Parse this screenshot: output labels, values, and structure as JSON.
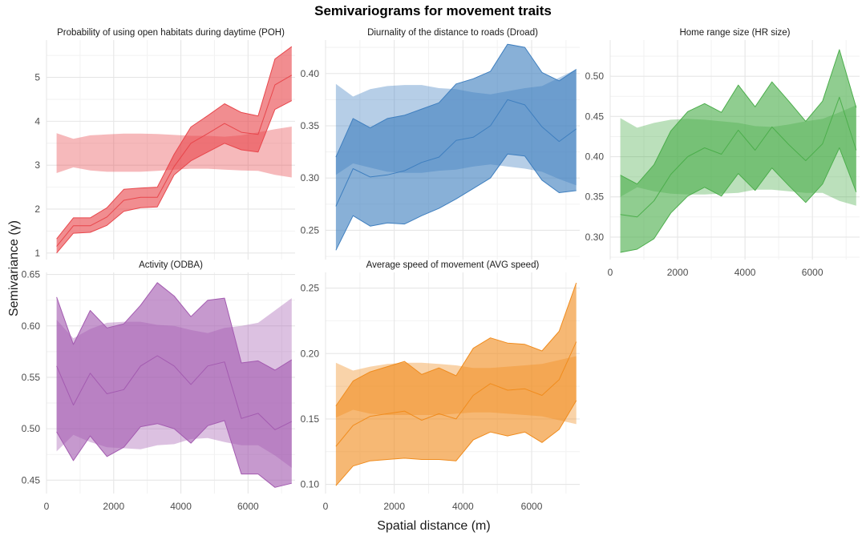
{
  "chart_data": {
    "type": "area",
    "title": "Semivariograms for movement traits",
    "xlabel": "Spatial distance (m)",
    "ylabel": "Semivariance (γ)",
    "x": [
      300,
      800,
      1300,
      1800,
      2300,
      2800,
      3300,
      3800,
      4300,
      4800,
      5300,
      5800,
      6300,
      6800,
      7300
    ],
    "x_ticks": [
      0,
      2000,
      4000,
      6000
    ],
    "xlim": [
      0,
      7400
    ],
    "grid": true,
    "panels": [
      {
        "title": "Probability of using open habitats during daytime (POH)",
        "color": "#e8474c",
        "ylim": [
          0.85,
          5.85
        ],
        "y_ticks": [
          1,
          2,
          3,
          4,
          5
        ],
        "y_tick_labels": [
          "1",
          "2",
          "3",
          "4",
          "5"
        ],
        "show_x_ticks": false,
        "observed": [
          1.15,
          1.62,
          1.62,
          1.82,
          2.2,
          2.27,
          2.27,
          2.97,
          3.5,
          3.72,
          3.95,
          3.75,
          3.7,
          4.83,
          5.05
        ],
        "observed_lower": [
          1.0,
          1.45,
          1.47,
          1.63,
          1.95,
          2.03,
          2.05,
          2.78,
          3.1,
          3.3,
          3.5,
          3.35,
          3.3,
          4.27,
          4.47
        ],
        "observed_upper": [
          1.32,
          1.8,
          1.8,
          2.03,
          2.45,
          2.48,
          2.5,
          3.25,
          3.87,
          4.13,
          4.4,
          4.2,
          4.12,
          5.42,
          5.7
        ],
        "envelope_lower": [
          2.82,
          2.95,
          2.88,
          2.85,
          2.85,
          2.85,
          2.87,
          2.9,
          2.92,
          2.92,
          2.9,
          2.88,
          2.87,
          2.78,
          2.72
        ],
        "envelope_upper": [
          3.73,
          3.6,
          3.68,
          3.7,
          3.72,
          3.72,
          3.71,
          3.69,
          3.67,
          3.67,
          3.65,
          3.68,
          3.75,
          3.82,
          3.88
        ]
      },
      {
        "title": "Diurnality of the distance to roads (Droad)",
        "color": "#3f7fbf",
        "ylim": [
          0.222,
          0.432
        ],
        "y_ticks": [
          0.25,
          0.3,
          0.35,
          0.4
        ],
        "y_tick_labels": [
          "0.25",
          "0.30",
          "0.35",
          "0.40"
        ],
        "show_x_ticks": false,
        "observed": [
          0.273,
          0.309,
          0.301,
          0.303,
          0.307,
          0.315,
          0.32,
          0.336,
          0.339,
          0.35,
          0.375,
          0.37,
          0.349,
          0.335,
          0.347
        ],
        "observed_lower": [
          0.231,
          0.264,
          0.254,
          0.257,
          0.256,
          0.264,
          0.271,
          0.28,
          0.29,
          0.3,
          0.323,
          0.321,
          0.298,
          0.286,
          0.288
        ],
        "observed_upper": [
          0.32,
          0.357,
          0.348,
          0.357,
          0.36,
          0.366,
          0.372,
          0.39,
          0.395,
          0.402,
          0.428,
          0.425,
          0.401,
          0.393,
          0.404
        ],
        "envelope_lower": [
          0.303,
          0.314,
          0.31,
          0.306,
          0.305,
          0.305,
          0.307,
          0.308,
          0.311,
          0.313,
          0.311,
          0.309,
          0.306,
          0.299,
          0.293
        ],
        "envelope_upper": [
          0.39,
          0.378,
          0.385,
          0.388,
          0.389,
          0.389,
          0.386,
          0.385,
          0.382,
          0.38,
          0.383,
          0.386,
          0.388,
          0.396,
          0.404
        ]
      },
      {
        "title": "Home range size (HR size)",
        "color": "#4cae4c",
        "ylim": [
          0.272,
          0.545
        ],
        "y_ticks": [
          0.3,
          0.35,
          0.4,
          0.45,
          0.5
        ],
        "y_tick_labels": [
          "0.30",
          "0.35",
          "0.40",
          "0.45",
          "0.50"
        ],
        "show_x_ticks": true,
        "observed": [
          0.328,
          0.325,
          0.345,
          0.378,
          0.4,
          0.411,
          0.403,
          0.433,
          0.408,
          0.437,
          0.415,
          0.395,
          0.416,
          0.474,
          0.408
        ],
        "observed_lower": [
          0.281,
          0.285,
          0.298,
          0.33,
          0.351,
          0.362,
          0.351,
          0.379,
          0.358,
          0.386,
          0.364,
          0.343,
          0.366,
          0.411,
          0.356
        ],
        "observed_upper": [
          0.377,
          0.366,
          0.39,
          0.432,
          0.456,
          0.466,
          0.455,
          0.489,
          0.462,
          0.493,
          0.469,
          0.444,
          0.469,
          0.533,
          0.461
        ],
        "envelope_lower": [
          0.35,
          0.362,
          0.357,
          0.354,
          0.353,
          0.353,
          0.354,
          0.355,
          0.359,
          0.359,
          0.357,
          0.355,
          0.355,
          0.345,
          0.339
        ],
        "envelope_upper": [
          0.448,
          0.436,
          0.442,
          0.446,
          0.447,
          0.446,
          0.444,
          0.442,
          0.438,
          0.437,
          0.44,
          0.444,
          0.447,
          0.455,
          0.464
        ]
      },
      {
        "title": "Activity (ODBA)",
        "color": "#a35bb0",
        "ylim": [
          0.437,
          0.652
        ],
        "y_ticks": [
          0.45,
          0.5,
          0.55,
          0.6,
          0.65
        ],
        "y_tick_labels": [
          "0.45",
          "0.50",
          "0.55",
          "0.60",
          "0.65"
        ],
        "show_x_ticks": true,
        "observed": [
          0.561,
          0.523,
          0.554,
          0.534,
          0.538,
          0.561,
          0.571,
          0.561,
          0.543,
          0.561,
          0.565,
          0.51,
          0.515,
          0.499,
          0.507
        ],
        "observed_lower": [
          0.497,
          0.469,
          0.493,
          0.473,
          0.482,
          0.502,
          0.505,
          0.5,
          0.486,
          0.503,
          0.508,
          0.456,
          0.456,
          0.443,
          0.447
        ],
        "observed_upper": [
          0.628,
          0.582,
          0.615,
          0.598,
          0.602,
          0.62,
          0.642,
          0.629,
          0.609,
          0.625,
          0.627,
          0.564,
          0.566,
          0.557,
          0.567
        ],
        "envelope_lower": [
          0.478,
          0.494,
          0.487,
          0.482,
          0.481,
          0.48,
          0.484,
          0.485,
          0.49,
          0.491,
          0.487,
          0.484,
          0.484,
          0.474,
          0.462
        ],
        "envelope_upper": [
          0.606,
          0.588,
          0.597,
          0.603,
          0.604,
          0.604,
          0.601,
          0.6,
          0.596,
          0.593,
          0.598,
          0.6,
          0.603,
          0.615,
          0.627
        ]
      },
      {
        "title": "Average speed of movement (AVG speed)",
        "color": "#f08c1e",
        "ylim": [
          0.093,
          0.262
        ],
        "y_ticks": [
          0.1,
          0.15,
          0.2,
          0.25
        ],
        "y_tick_labels": [
          "0.10",
          "0.15",
          "0.20",
          "0.25"
        ],
        "show_x_ticks": true,
        "observed": [
          0.129,
          0.145,
          0.152,
          0.154,
          0.156,
          0.149,
          0.154,
          0.15,
          0.168,
          0.177,
          0.172,
          0.173,
          0.168,
          0.18,
          0.209
        ],
        "observed_lower": [
          0.099,
          0.114,
          0.118,
          0.119,
          0.12,
          0.119,
          0.119,
          0.118,
          0.134,
          0.14,
          0.137,
          0.14,
          0.132,
          0.142,
          0.164
        ],
        "observed_upper": [
          0.16,
          0.179,
          0.186,
          0.19,
          0.194,
          0.184,
          0.189,
          0.183,
          0.204,
          0.212,
          0.208,
          0.207,
          0.202,
          0.217,
          0.254
        ],
        "envelope_lower": [
          0.151,
          0.157,
          0.154,
          0.153,
          0.153,
          0.153,
          0.153,
          0.154,
          0.155,
          0.155,
          0.154,
          0.153,
          0.152,
          0.149,
          0.146
        ],
        "envelope_upper": [
          0.193,
          0.187,
          0.19,
          0.192,
          0.193,
          0.193,
          0.192,
          0.191,
          0.189,
          0.189,
          0.19,
          0.191,
          0.192,
          0.195,
          0.198
        ]
      }
    ]
  }
}
